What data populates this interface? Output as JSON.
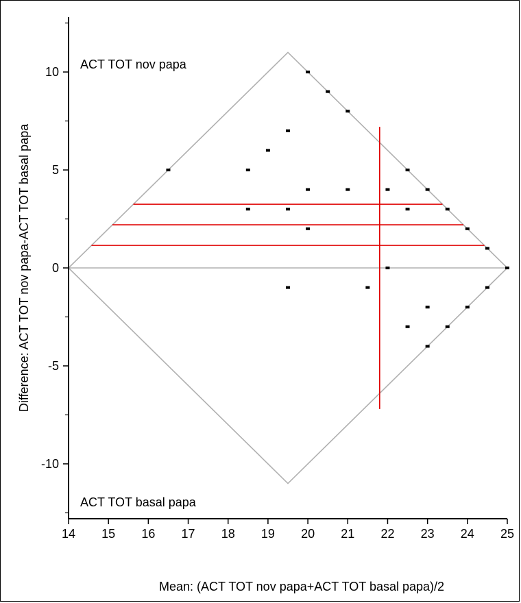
{
  "chart_data": {
    "type": "scatter",
    "title": "",
    "xlabel": "Mean: (ACT TOT nov papa+ACT TOT basal papa)/2",
    "ylabel": "Difference: ACT TOT nov papa-ACT TOT basal papa",
    "xlim": [
      14,
      25
    ],
    "ylim": [
      -12.8,
      12.8
    ],
    "x_ticks": [
      14,
      15,
      16,
      17,
      18,
      19,
      20,
      21,
      22,
      23,
      24,
      25
    ],
    "y_ticks": [
      -10,
      -5,
      0,
      5,
      10
    ],
    "y_minor_ticks": [
      -12.5,
      -7.5,
      -2.5,
      2.5,
      7.5,
      12.5
    ],
    "top_label": "ACT TOT nov papa",
    "bottom_label": "ACT TOT basal papa",
    "points": [
      {
        "x": 16.5,
        "y": 5
      },
      {
        "x": 18.5,
        "y": 5
      },
      {
        "x": 18.5,
        "y": 3
      },
      {
        "x": 19,
        "y": 6
      },
      {
        "x": 19.5,
        "y": 7
      },
      {
        "x": 19.5,
        "y": 3
      },
      {
        "x": 19.5,
        "y": -1
      },
      {
        "x": 20,
        "y": 10
      },
      {
        "x": 20,
        "y": 4
      },
      {
        "x": 20,
        "y": 2
      },
      {
        "x": 20.5,
        "y": 9
      },
      {
        "x": 21,
        "y": 8
      },
      {
        "x": 21,
        "y": 4
      },
      {
        "x": 21.5,
        "y": -1
      },
      {
        "x": 22,
        "y": 4
      },
      {
        "x": 22,
        "y": 0
      },
      {
        "x": 22.5,
        "y": 5
      },
      {
        "x": 22.5,
        "y": 3
      },
      {
        "x": 22.5,
        "y": -3
      },
      {
        "x": 23,
        "y": 4
      },
      {
        "x": 23,
        "y": -2
      },
      {
        "x": 23,
        "y": -4
      },
      {
        "x": 23.5,
        "y": 3
      },
      {
        "x": 23.5,
        "y": -3
      },
      {
        "x": 24,
        "y": 2
      },
      {
        "x": 24,
        "y": -2
      },
      {
        "x": 24.5,
        "y": 1
      },
      {
        "x": 24.5,
        "y": -1
      },
      {
        "x": 25,
        "y": 0
      }
    ],
    "diamond": {
      "vertices": [
        [
          14,
          0
        ],
        [
          19.5,
          11
        ],
        [
          25,
          0
        ],
        [
          19.5,
          -11
        ]
      ],
      "color": "#b0b0b0"
    },
    "zero_line": {
      "y": 0,
      "color": "#b0b0b0"
    },
    "mean_difference": 2.2,
    "difference_ci": [
      1.15,
      3.25
    ],
    "mean_of_means": 21.8,
    "mean_line_range": [
      -7.2,
      7.2
    ],
    "line_color": "#e00000",
    "point_color": "#000000"
  }
}
